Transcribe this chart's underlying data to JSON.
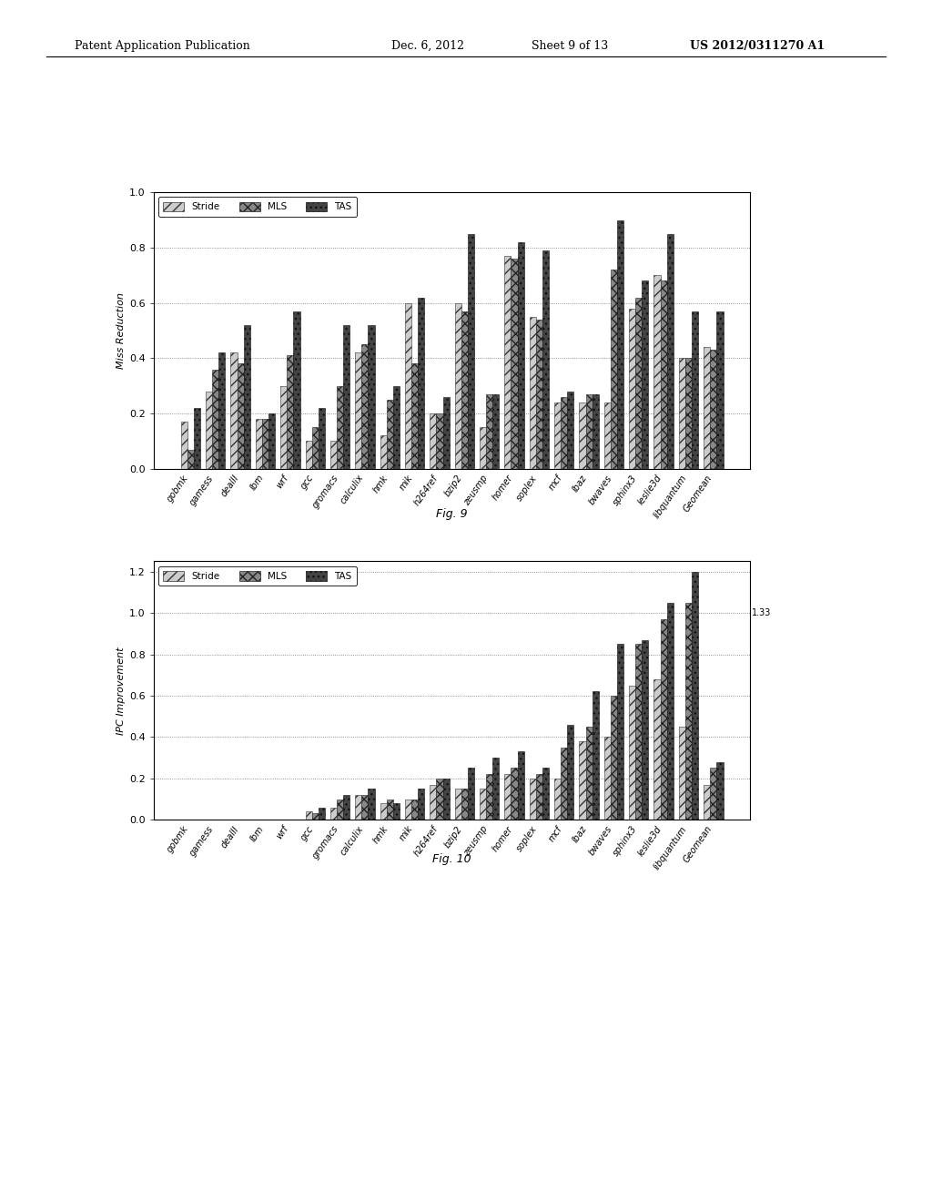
{
  "fig9": {
    "title": "Fig. 9",
    "ylabel": "Miss Reduction",
    "ylim": [
      0.0,
      1.0
    ],
    "yticks": [
      0.0,
      0.2,
      0.4,
      0.6,
      0.8,
      1.0
    ],
    "ytick_labels": [
      "0.0",
      "0.2",
      "0.4",
      "0.6",
      "0.8",
      "1.0"
    ],
    "top_label": "1.0",
    "categories": [
      "gobmk",
      "gamess",
      "dealII",
      "lbm",
      "wrf",
      "gcc",
      "gromacs",
      "calculix",
      "hmk",
      "mik",
      "h264ref",
      "bzip2",
      "zeusmp",
      "homer",
      "soplex",
      "mcf",
      "lbaz",
      "bwaves",
      "sphinx3",
      "leslie3d",
      "libquantum",
      "Geomean"
    ],
    "stride": [
      0.17,
      0.28,
      0.42,
      0.18,
      0.3,
      0.1,
      0.1,
      0.42,
      0.12,
      0.6,
      0.2,
      0.6,
      0.15,
      0.77,
      0.55,
      0.24,
      0.24,
      0.24,
      0.58,
      0.7,
      0.4,
      0.44
    ],
    "mls": [
      0.07,
      0.36,
      0.38,
      0.18,
      0.41,
      0.15,
      0.3,
      0.45,
      0.25,
      0.38,
      0.2,
      0.57,
      0.27,
      0.76,
      0.54,
      0.26,
      0.27,
      0.72,
      0.62,
      0.68,
      0.4,
      0.43
    ],
    "tas": [
      0.22,
      0.42,
      0.52,
      0.2,
      0.57,
      0.22,
      0.52,
      0.52,
      0.3,
      0.62,
      0.26,
      0.85,
      0.27,
      0.82,
      0.79,
      0.28,
      0.27,
      0.9,
      0.68,
      0.85,
      0.57,
      0.57
    ]
  },
  "fig10": {
    "title": "Fig. 10",
    "ylabel": "IPC Improvement",
    "ylim": [
      0.0,
      1.25
    ],
    "yticks": [
      0.0,
      0.2,
      0.4,
      0.6,
      0.8,
      1.0,
      1.2
    ],
    "ytick_labels": [
      "0.0",
      "0.2",
      "0.4",
      "0.6",
      "0.8",
      "1.0",
      "1.2"
    ],
    "top_label": "1.2",
    "annotation": "1.33",
    "categories": [
      "gobmk",
      "gamess",
      "dealII",
      "lbm",
      "wrf",
      "gcc",
      "gromacs",
      "calculix",
      "hmk",
      "mik",
      "h264ref",
      "bzip2",
      "zeusmp",
      "homer",
      "soplex",
      "mcf",
      "lbaz",
      "bwaves",
      "sphinx3",
      "leslie3d",
      "libquantum",
      "Geomean"
    ],
    "stride": [
      0.0,
      -0.01,
      0.0,
      0.0,
      0.0,
      0.04,
      0.06,
      0.12,
      0.08,
      0.1,
      0.17,
      0.15,
      0.15,
      0.22,
      0.2,
      0.2,
      0.38,
      0.4,
      0.65,
      0.68,
      0.45,
      0.17
    ],
    "mls": [
      0.0,
      0.0,
      0.0,
      0.0,
      0.0,
      0.03,
      0.1,
      0.12,
      0.1,
      0.1,
      0.2,
      0.15,
      0.22,
      0.25,
      0.22,
      0.35,
      0.45,
      0.6,
      0.85,
      0.97,
      1.05,
      0.25
    ],
    "tas": [
      0.0,
      0.0,
      0.0,
      0.0,
      0.0,
      0.06,
      0.12,
      0.15,
      0.08,
      0.15,
      0.2,
      0.25,
      0.3,
      0.33,
      0.25,
      0.46,
      0.62,
      0.85,
      0.87,
      1.05,
      1.2,
      0.28
    ]
  },
  "legend_labels": [
    "Stride",
    "MLS",
    "TAS"
  ],
  "page_color": "#ffffff",
  "chart_bg": "#ffffff",
  "header": {
    "left": "Patent Application Publication",
    "mid": "Dec. 6, 2012",
    "sheet": "Sheet 9 of 13",
    "right": "US 2012/0311270 A1"
  }
}
